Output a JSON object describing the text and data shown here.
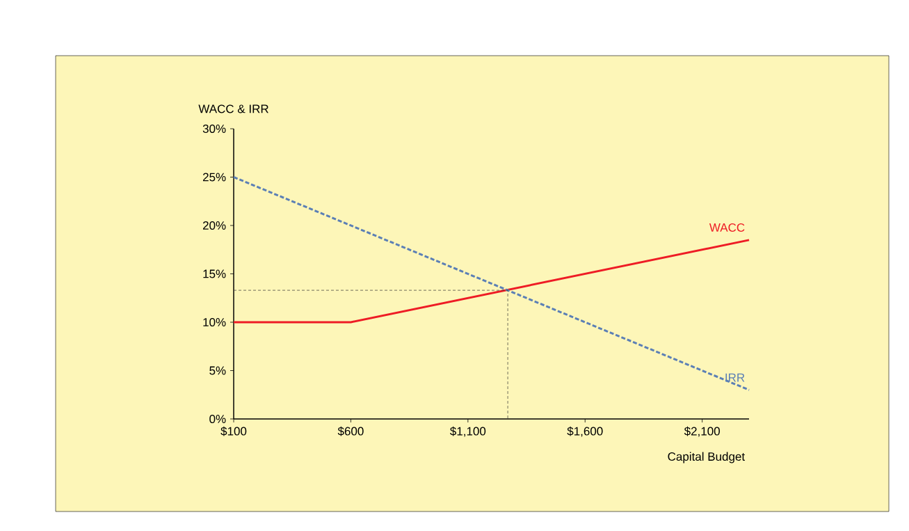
{
  "chart_data": {
    "type": "line",
    "xlabel": "Capital Budget",
    "ylabel": "WACC & IRR",
    "xlim": [
      100,
      2300
    ],
    "ylim": [
      0,
      30
    ],
    "xticks": [
      {
        "value": 100,
        "label": "$100"
      },
      {
        "value": 600,
        "label": "$600"
      },
      {
        "value": 1100,
        "label": "$1,100"
      },
      {
        "value": 1600,
        "label": "$1,600"
      },
      {
        "value": 2100,
        "label": "$2,100"
      }
    ],
    "yticks": [
      {
        "value": 0,
        "label": "0%"
      },
      {
        "value": 5,
        "label": "5%"
      },
      {
        "value": 10,
        "label": "10%"
      },
      {
        "value": 15,
        "label": "15%"
      },
      {
        "value": 20,
        "label": "20%"
      },
      {
        "value": 25,
        "label": "25%"
      },
      {
        "value": 30,
        "label": "30%"
      }
    ],
    "grid": false,
    "legend": false,
    "marker": "none",
    "series": [
      {
        "name": "WACC",
        "color": "#ee1c25",
        "line_style": "solid",
        "x": [
          100,
          550,
          600,
          2300
        ],
        "values": [
          10,
          10,
          10,
          18.5
        ]
      },
      {
        "name": "IRR",
        "color": "#5b7fb5",
        "line_style": "dashed",
        "x": [
          100,
          2300
        ],
        "values": [
          25,
          3
        ]
      },
      {
        "color": "#333333",
        "line_style": "dashed",
        "x": [
          100,
          1270,
          1270
        ],
        "values": [
          13.3,
          13.3,
          0
        ]
      }
    ]
  }
}
